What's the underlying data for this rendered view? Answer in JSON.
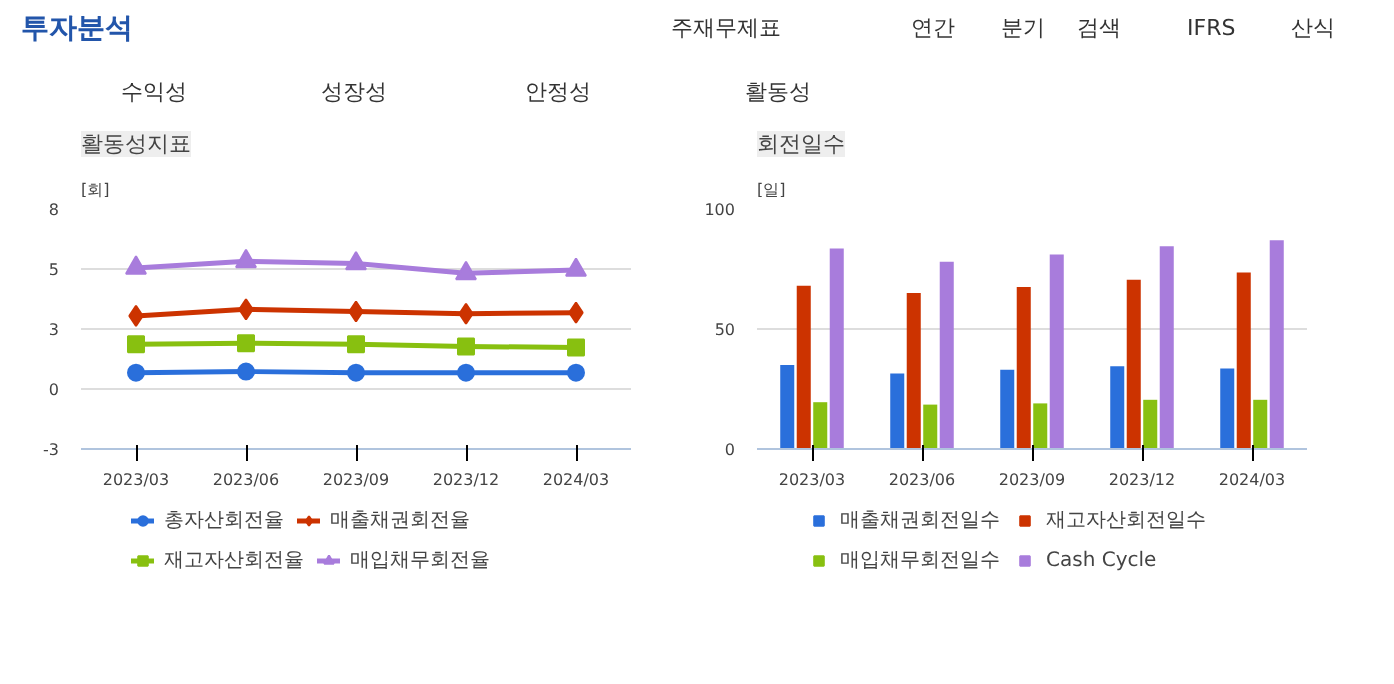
{
  "chart_data": [
    {
      "type": "other",
      "title": "투자분석",
      "annotations": [
        "주재무제표",
        "연간",
        "분기",
        "검색",
        "IFRS",
        "산식",
        "수익성",
        "성장성",
        "안정성",
        "활동성"
      ]
    },
    {
      "type": "line",
      "title": "활동성지표",
      "ylabel": "[회]",
      "categories": [
        "2023/03",
        "2023/06",
        "2023/09",
        "2023/12",
        "2024/03"
      ],
      "ylim": [
        -3,
        8
      ],
      "yticks": [
        -3,
        {
          "value": -0.25,
          "label": "0"
        },
        {
          "value": 2.5,
          "label": "3"
        },
        {
          "value": 5.25,
          "label": "5"
        },
        8
      ],
      "grid": "y",
      "legend": "bottom",
      "series": [
        {
          "name": "총자산회전율",
          "color": "#2a6fdb",
          "marker": "circle",
          "values": [
            0.5,
            0.55,
            0.5,
            0.5,
            0.5
          ]
        },
        {
          "name": "매출채권회전율",
          "color": "#cc3300",
          "marker": "diamond",
          "values": [
            3.1,
            3.4,
            3.3,
            3.2,
            3.25
          ]
        },
        {
          "name": "재고자산회전율",
          "color": "#88c010",
          "marker": "square",
          "values": [
            1.8,
            1.85,
            1.8,
            1.7,
            1.65
          ]
        },
        {
          "name": "매입채무회전율",
          "color": "#a87cdc",
          "marker": "triangle",
          "values": [
            5.3,
            5.6,
            5.5,
            5.05,
            5.2
          ]
        }
      ]
    },
    {
      "type": "bar",
      "title": "회전일수",
      "ylabel": "[일]",
      "categories": [
        "2023/03",
        "2023/06",
        "2023/09",
        "2023/12",
        "2024/03"
      ],
      "ylim": [
        0,
        100
      ],
      "yticks": [
        0,
        50,
        100
      ],
      "grid": "y",
      "legend": "bottom",
      "series": [
        {
          "name": "매출채권회전일수",
          "color": "#2a6fdb",
          "values": [
            35,
            31.5,
            33,
            34.5,
            33.5
          ]
        },
        {
          "name": "재고자산회전일수",
          "color": "#cc3300",
          "values": [
            68,
            65,
            67.5,
            70.5,
            73.5
          ]
        },
        {
          "name": "매입채무회전일수",
          "color": "#88c010",
          "values": [
            19.5,
            18.5,
            19,
            20.5,
            20.5
          ]
        },
        {
          "name": "Cash Cycle",
          "color": "#a87cdc",
          "values": [
            83.5,
            78,
            81,
            84.5,
            87
          ]
        }
      ]
    }
  ]
}
